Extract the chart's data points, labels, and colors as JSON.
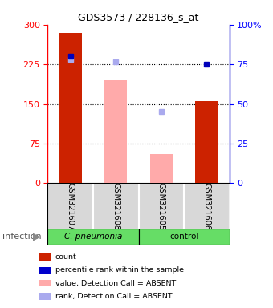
{
  "title": "GDS3573 / 228136_s_at",
  "samples": [
    "GSM321607",
    "GSM321608",
    "GSM321605",
    "GSM321606"
  ],
  "red_bars": [
    285,
    null,
    null,
    155
  ],
  "pink_bars": [
    null,
    195,
    55,
    null
  ],
  "dark_blue_squares_left": [
    240,
    null,
    null,
    null
  ],
  "dark_blue_squares_right": [
    null,
    null,
    null,
    75
  ],
  "light_blue_squares_left": [
    235,
    230,
    135,
    null
  ],
  "ylim_left": [
    0,
    300
  ],
  "ylim_right": [
    0,
    100
  ],
  "yticks_left": [
    0,
    75,
    150,
    225,
    300
  ],
  "yticks_right": [
    0,
    25,
    50,
    75,
    100
  ],
  "hlines": [
    75,
    150,
    225
  ],
  "bar_width": 0.5,
  "group_label": "infection",
  "group1_label": "C. pneumonia",
  "group2_label": "control",
  "legend_labels": [
    "count",
    "percentile rank within the sample",
    "value, Detection Call = ABSENT",
    "rank, Detection Call = ABSENT"
  ],
  "legend_colors": [
    "#cc2200",
    "#0000cc",
    "#ffaaaa",
    "#aaaaee"
  ]
}
